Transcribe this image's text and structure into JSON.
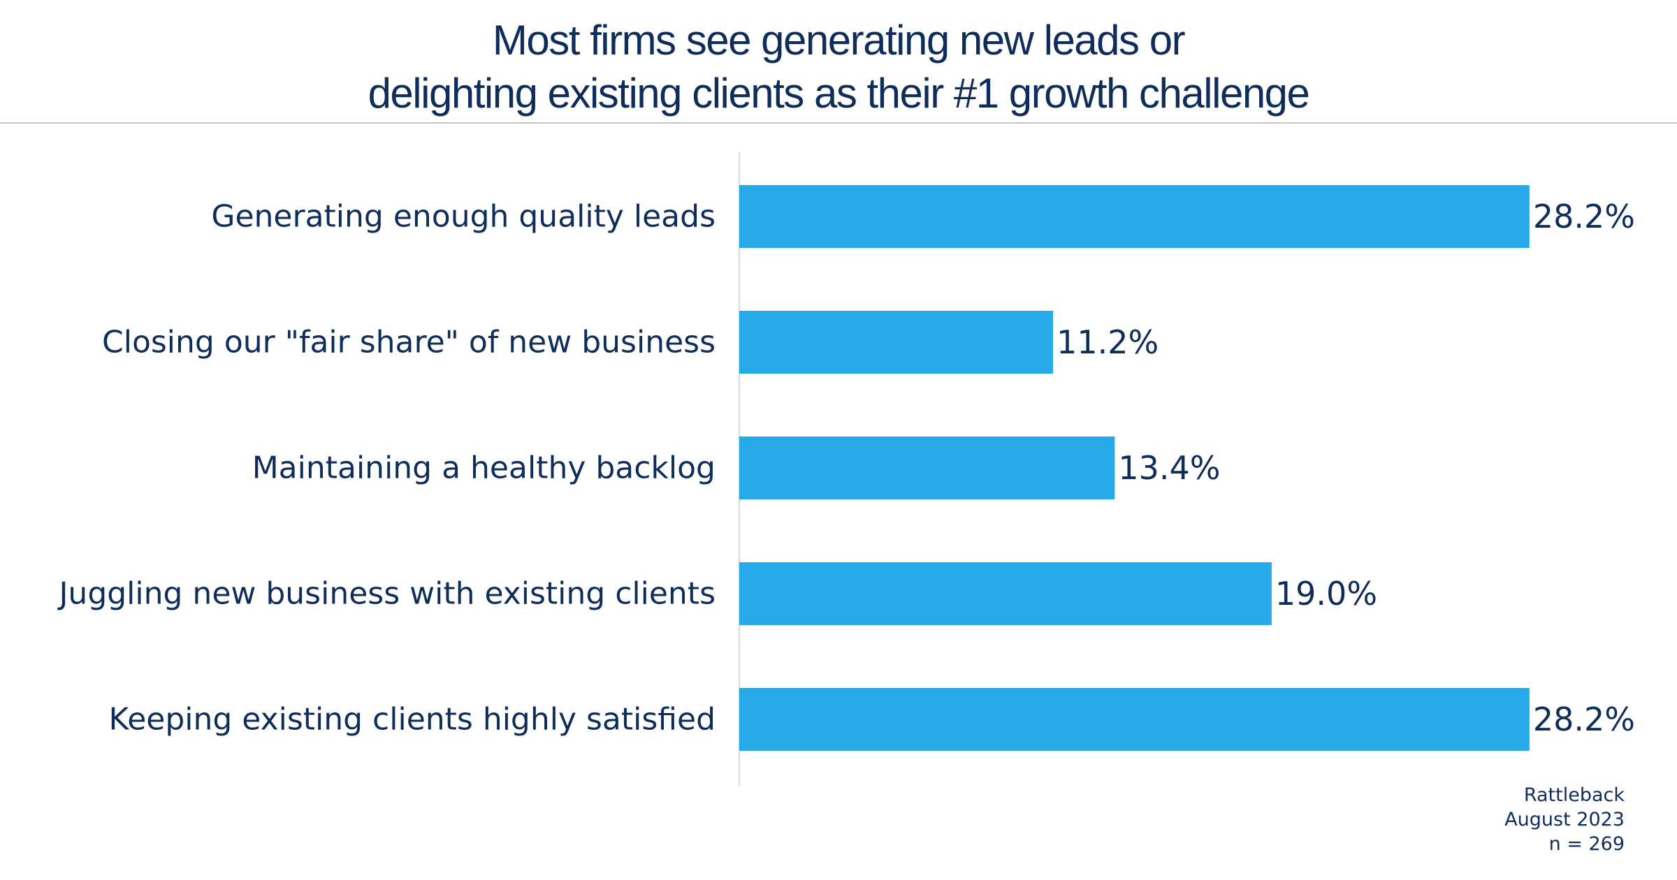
{
  "title": {
    "line1": "Most firms see generating new leads or",
    "line2": "delighting existing clients as their #1 growth challenge"
  },
  "colors": {
    "bar": "#27aae9",
    "text": "#0f2d5a",
    "axis": "#d9d9d9"
  },
  "chart_data": {
    "type": "bar",
    "orientation": "horizontal",
    "categories": [
      "Generating enough quality leads",
      "Closing our \"fair share\" of new business",
      "Maintaining a healthy backlog",
      "Juggling new business with existing clients",
      "Keeping existing clients highly satisfied"
    ],
    "values": [
      28.2,
      11.2,
      13.4,
      19.0,
      28.2
    ],
    "value_labels": [
      "28.2%",
      "11.2%",
      "13.4%",
      "19.0%",
      "28.2%"
    ],
    "xlim": [
      0,
      30
    ],
    "grid": false
  },
  "source": {
    "line1": "Rattleback",
    "line2": "August 2023",
    "line3": "n = 269"
  }
}
